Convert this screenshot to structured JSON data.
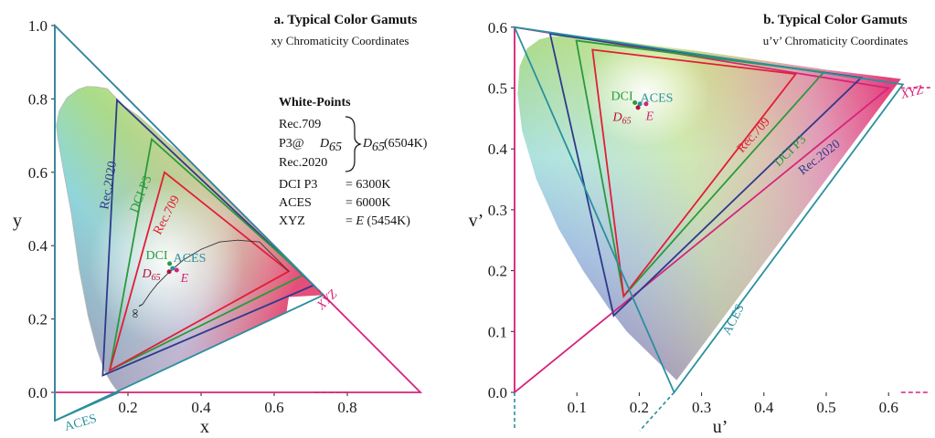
{
  "chart_data": [
    {
      "type": "scatter",
      "panel": "a",
      "title": "a. Typical Color Gamuts",
      "subtitle": "xy Chromaticity Coordinates",
      "xlabel": "x",
      "ylabel": "y",
      "xlim": [
        0,
        0.8
      ],
      "ylim": [
        0,
        1.0
      ],
      "xticks": [
        "0.2",
        "0.4",
        "0.6",
        "0.8"
      ],
      "xtick_values": [
        0.2,
        0.4,
        0.6,
        0.8
      ],
      "yticks": [
        "0.0",
        "0.2",
        "0.4",
        "0.6",
        "0.8",
        "1.0"
      ],
      "ytick_values": [
        0.0,
        0.2,
        0.4,
        0.6,
        0.8,
        1.0
      ],
      "locus": [
        [
          0.175,
          0.005
        ],
        [
          0.172,
          0.005
        ],
        [
          0.167,
          0.009
        ],
        [
          0.161,
          0.017
        ],
        [
          0.151,
          0.032
        ],
        [
          0.137,
          0.056
        ],
        [
          0.115,
          0.117
        ],
        [
          0.091,
          0.208
        ],
        [
          0.067,
          0.334
        ],
        [
          0.045,
          0.488
        ],
        [
          0.023,
          0.608
        ],
        [
          0.008,
          0.694
        ],
        [
          0.004,
          0.728
        ],
        [
          0.012,
          0.767
        ],
        [
          0.033,
          0.803
        ],
        [
          0.064,
          0.826
        ],
        [
          0.087,
          0.834
        ],
        [
          0.114,
          0.833
        ],
        [
          0.143,
          0.828
        ],
        [
          0.191,
          0.779
        ],
        [
          0.228,
          0.754
        ],
        [
          0.262,
          0.724
        ],
        [
          0.298,
          0.69
        ],
        [
          0.374,
          0.625
        ],
        [
          0.444,
          0.554
        ],
        [
          0.512,
          0.487
        ],
        [
          0.575,
          0.424
        ],
        [
          0.627,
          0.372
        ],
        [
          0.666,
          0.334
        ],
        [
          0.692,
          0.308
        ],
        [
          0.714,
          0.286
        ],
        [
          0.735,
          0.265
        ]
      ],
      "gamuts": [
        {
          "name": "XYZ",
          "color": "#d6247a",
          "points": [
            [
              1,
              0
            ],
            [
              0,
              1
            ],
            [
              0,
              0
            ]
          ]
        },
        {
          "name": "Rec.2020",
          "color": "#2e3a8c",
          "points": [
            [
              0.708,
              0.292
            ],
            [
              0.17,
              0.797
            ],
            [
              0.131,
              0.046
            ]
          ]
        },
        {
          "name": "DCI P3",
          "color": "#2a9a3c",
          "points": [
            [
              0.68,
              0.32
            ],
            [
              0.265,
              0.69
            ],
            [
              0.15,
              0.06
            ]
          ]
        },
        {
          "name": "Rec.709",
          "color": "#e01f36",
          "points": [
            [
              0.64,
              0.33
            ],
            [
              0.3,
              0.6
            ],
            [
              0.15,
              0.06
            ]
          ]
        },
        {
          "name": "ACES",
          "color": "#2b8f9e",
          "points": [
            [
              0.7347,
              0.2653
            ],
            [
              0.0,
              1.0
            ],
            [
              0.0001,
              -0.077
            ]
          ]
        }
      ],
      "gamut_labels": [
        "Rec.2020",
        "DCI P3",
        "Rec.709",
        "XYZ",
        "ACES"
      ],
      "white_points": [
        {
          "name": "DCI",
          "x": 0.314,
          "y": 0.351,
          "color": "#2a9a3c"
        },
        {
          "name": "ACES",
          "x": 0.322,
          "y": 0.338,
          "color": "#2b8f9e"
        },
        {
          "name": "D65",
          "x": 0.3127,
          "y": 0.329,
          "color": "#b3123a"
        },
        {
          "name": "E",
          "x": 0.3333,
          "y": 0.3333,
          "color": "#d6247a"
        }
      ],
      "planckian_locus": [
        [
          0.64,
          0.33
        ],
        [
          0.56,
          0.41
        ],
        [
          0.5,
          0.415
        ],
        [
          0.45,
          0.41
        ],
        [
          0.4,
          0.39
        ],
        [
          0.35,
          0.36
        ],
        [
          0.31,
          0.325
        ],
        [
          0.28,
          0.295
        ],
        [
          0.26,
          0.27
        ],
        [
          0.24,
          0.24
        ]
      ],
      "infinity_label": "∞",
      "white_point_legend": {
        "heading": "White-Points",
        "group": [
          "Rec.709",
          "P3@",
          "Rec.2020"
        ],
        "group_subscript_D": "D",
        "group_subscript_65": "65",
        "group_value": "(6504K)",
        "rows": [
          {
            "name": "DCI P3",
            "value": "= 6300K"
          },
          {
            "name": "ACES",
            "value": "= 6000K"
          },
          {
            "name": "XYZ",
            "value_prefix": "= ",
            "value_italic": "E",
            "value_suffix": " (5454K)"
          }
        ]
      }
    },
    {
      "type": "scatter",
      "panel": "b",
      "title": "b. Typical Color Gamuts",
      "subtitle": "u’v’ Chromaticity Coordinates",
      "xlabel": "u’",
      "ylabel": "v’",
      "xlim": [
        0,
        0.63
      ],
      "ylim": [
        0,
        0.6
      ],
      "xticks": [
        "0.1",
        "0.2",
        "0.3",
        "0.4",
        "0.5",
        "0.6"
      ],
      "xtick_values": [
        0.1,
        0.2,
        0.3,
        0.4,
        0.5,
        0.6
      ],
      "yticks": [
        "0.0",
        "0.1",
        "0.2",
        "0.3",
        "0.4",
        "0.5",
        "0.6"
      ],
      "ytick_values": [
        0.0,
        0.1,
        0.2,
        0.3,
        0.4,
        0.5,
        0.6
      ],
      "locus": [
        [
          0.26,
          0.02
        ],
        [
          0.22,
          0.06
        ],
        [
          0.18,
          0.1
        ],
        [
          0.15,
          0.14
        ],
        [
          0.11,
          0.2
        ],
        [
          0.07,
          0.27
        ],
        [
          0.035,
          0.35
        ],
        [
          0.012,
          0.43
        ],
        [
          0.005,
          0.49
        ],
        [
          0.008,
          0.535
        ],
        [
          0.02,
          0.565
        ],
        [
          0.04,
          0.58
        ],
        [
          0.06,
          0.585
        ],
        [
          0.1,
          0.585
        ],
        [
          0.15,
          0.58
        ],
        [
          0.22,
          0.57
        ],
        [
          0.3,
          0.56
        ],
        [
          0.4,
          0.545
        ],
        [
          0.5,
          0.53
        ],
        [
          0.58,
          0.52
        ],
        [
          0.62,
          0.515
        ]
      ],
      "gamuts": [
        {
          "name": "XYZ",
          "color": "#d6247a",
          "points": [
            [
              0.6,
              0.5
            ],
            [
              0,
              0.6
            ],
            [
              0,
              0
            ]
          ]
        },
        {
          "name": "Rec.2020",
          "color": "#2e3a8c",
          "points": [
            [
              0.556,
              0.517
            ],
            [
              0.057,
              0.589
            ],
            [
              0.159,
              0.126
            ]
          ]
        },
        {
          "name": "DCI P3",
          "color": "#2a9a3c",
          "points": [
            [
              0.496,
              0.526
            ],
            [
              0.099,
              0.578
            ],
            [
              0.175,
              0.158
            ]
          ]
        },
        {
          "name": "Rec.709",
          "color": "#e01f36",
          "points": [
            [
              0.451,
              0.523
            ],
            [
              0.125,
              0.563
            ],
            [
              0.175,
              0.158
            ]
          ]
        },
        {
          "name": "ACES",
          "color": "#2b8f9e",
          "points": [
            [
              0.623,
              0.506
            ],
            [
              0,
              0.6
            ],
            [
              0.256,
              0
            ]
          ]
        }
      ],
      "gamut_labels": [
        "Rec.709",
        "DCI P3",
        "Rec.2020",
        "XYZ",
        "ACES"
      ],
      "white_points": [
        {
          "name": "DCI",
          "x": 0.193,
          "y": 0.476,
          "color": "#2a9a3c"
        },
        {
          "name": "ACES",
          "x": 0.201,
          "y": 0.474,
          "color": "#2b8f9e"
        },
        {
          "name": "D65",
          "x": 0.198,
          "y": 0.468,
          "color": "#b3123a"
        },
        {
          "name": "E",
          "x": 0.211,
          "y": 0.474,
          "color": "#d6247a"
        }
      ]
    }
  ]
}
